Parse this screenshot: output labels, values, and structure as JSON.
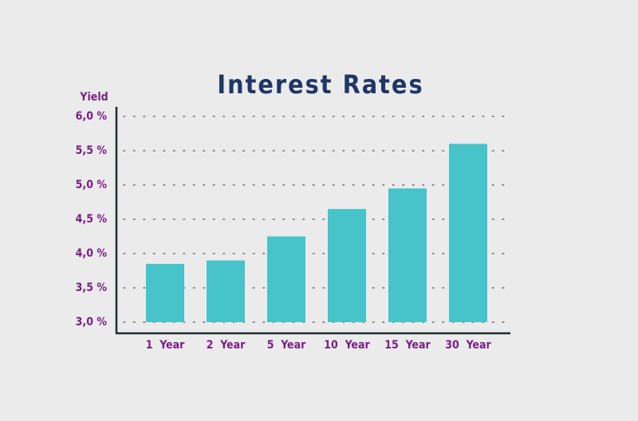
{
  "chart_data": {
    "type": "bar",
    "title": "Interest Rates",
    "y_label": "Yield",
    "categories": [
      "1  Year",
      "2  Year",
      "5  Year",
      "10  Year",
      "15  Year",
      "30  Year"
    ],
    "values": [
      3.85,
      3.9,
      4.25,
      4.65,
      4.95,
      5.6
    ],
    "color": "#46c4ca",
    "ylim": [
      3,
      6
    ],
    "yticks": [
      {
        "value": 3,
        "label": "3,0 %"
      },
      {
        "value": 3.5,
        "label": "3,5 %"
      },
      {
        "value": 4,
        "label": "4,0 %"
      },
      {
        "value": 4.5,
        "label": "4,5 %"
      },
      {
        "value": 5,
        "label": "5,0 %"
      },
      {
        "value": 5.5,
        "label": "5,5 %"
      },
      {
        "value": 6,
        "label": "6,0 %"
      }
    ],
    "grid": true
  }
}
